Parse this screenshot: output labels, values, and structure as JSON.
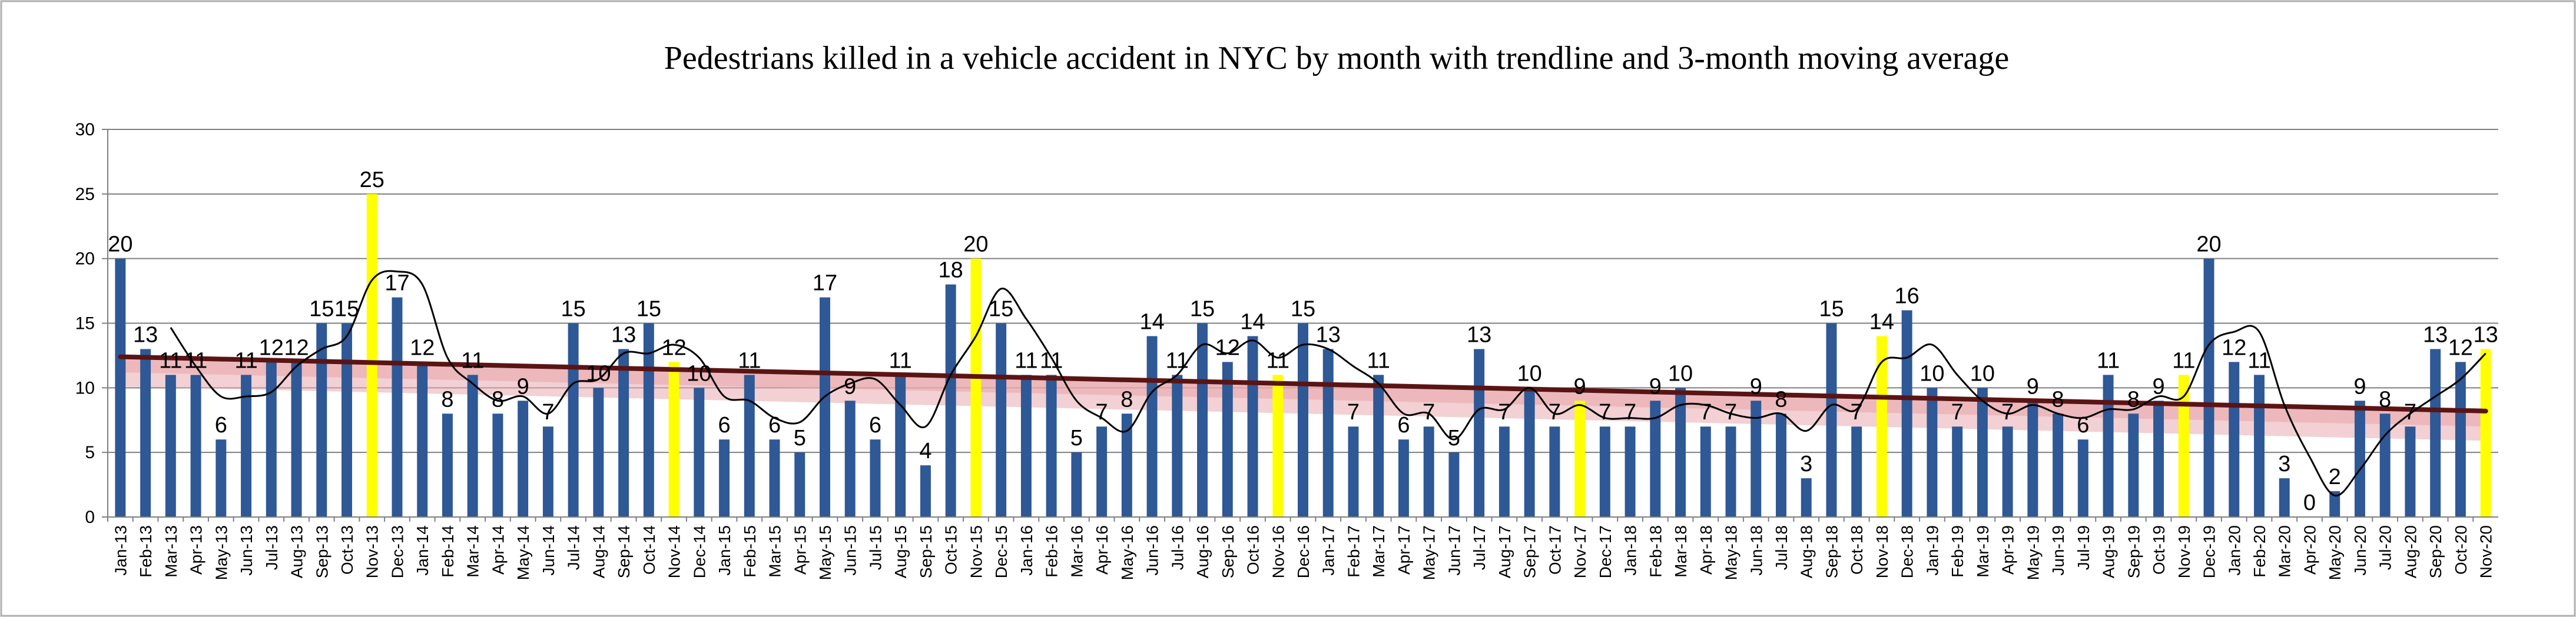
{
  "chart_data": {
    "type": "bar",
    "title": "Pedestrians killed in a vehicle accident  in NYC  by month with trendline and 3-month moving average",
    "xlabel": "",
    "ylabel": "",
    "ylim": [
      0,
      30
    ],
    "yticks": [
      0,
      5,
      10,
      15,
      20,
      25,
      30
    ],
    "grid": true,
    "legend": "none",
    "categories": [
      "Jan-13",
      "Feb-13",
      "Mar-13",
      "Apr-13",
      "May-13",
      "Jun-13",
      "Jul-13",
      "Aug-13",
      "Sep-13",
      "Oct-13",
      "Nov-13",
      "Dec-13",
      "Jan-14",
      "Feb-14",
      "Mar-14",
      "Apr-14",
      "May-14",
      "Jun-14",
      "Jul-14",
      "Aug-14",
      "Sep-14",
      "Oct-14",
      "Nov-14",
      "Dec-14",
      "Jan-15",
      "Feb-15",
      "Mar-15",
      "Apr-15",
      "May-15",
      "Jun-15",
      "Jul-15",
      "Aug-15",
      "Sep-15",
      "Oct-15",
      "Nov-15",
      "Dec-15",
      "Jan-16",
      "Feb-16",
      "Mar-16",
      "Apr-16",
      "May-16",
      "Jun-16",
      "Jul-16",
      "Aug-16",
      "Sep-16",
      "Oct-16",
      "Nov-16",
      "Dec-16",
      "Jan-17",
      "Feb-17",
      "Mar-17",
      "Apr-17",
      "May-17",
      "Jun-17",
      "Jul-17",
      "Aug-17",
      "Sep-17",
      "Oct-17",
      "Nov-17",
      "Dec-17",
      "Jan-18",
      "Feb-18",
      "Mar-18",
      "Apr-18",
      "May-18",
      "Jun-18",
      "Jul-18",
      "Aug-18",
      "Sep-18",
      "Oct-18",
      "Nov-18",
      "Dec-18",
      "Jan-19",
      "Feb-19",
      "Mar-19",
      "Apr-19",
      "May-19",
      "Jun-19",
      "Jul-19",
      "Aug-19",
      "Sep-19",
      "Oct-19",
      "Nov-19",
      "Dec-19",
      "Jan-20",
      "Feb-20",
      "Mar-20",
      "Apr-20",
      "May-20",
      "Jun-20",
      "Jul-20",
      "Aug-20",
      "Sep-20",
      "Oct-20",
      "Nov-20"
    ],
    "values": [
      20,
      13,
      11,
      11,
      6,
      11,
      12,
      12,
      15,
      15,
      25,
      17,
      12,
      8,
      11,
      8,
      9,
      7,
      15,
      10,
      13,
      15,
      12,
      10,
      6,
      11,
      6,
      5,
      17,
      9,
      6,
      11,
      4,
      18,
      20,
      15,
      11,
      11,
      5,
      7,
      8,
      14,
      11,
      15,
      12,
      14,
      11,
      15,
      13,
      7,
      11,
      6,
      7,
      5,
      13,
      7,
      10,
      7,
      9,
      7,
      7,
      9,
      10,
      7,
      7,
      9,
      8,
      3,
      15,
      7,
      14,
      16,
      10,
      7,
      10,
      7,
      9,
      8,
      6,
      11,
      8,
      9,
      11,
      20,
      12,
      11,
      3,
      0,
      2,
      9,
      8,
      7,
      13,
      12,
      13
    ],
    "highlight_categories": [
      "Nov-13",
      "Nov-14",
      "Nov-15",
      "Nov-16",
      "Nov-17",
      "Nov-18",
      "Nov-19",
      "Nov-20"
    ],
    "colors": {
      "bar": "#2E5896",
      "highlight_bar": "#FFFF00",
      "trendline": "#5A1414",
      "trend_band": "#E8A9AE",
      "moving_average": "#000000",
      "grid": "#7F7F7F",
      "text": "#000000",
      "border": "#AFAFAF"
    },
    "trendline": {
      "type": "linear",
      "start": 12.4,
      "end": 8.2
    },
    "moving_average": {
      "period": 3
    }
  }
}
